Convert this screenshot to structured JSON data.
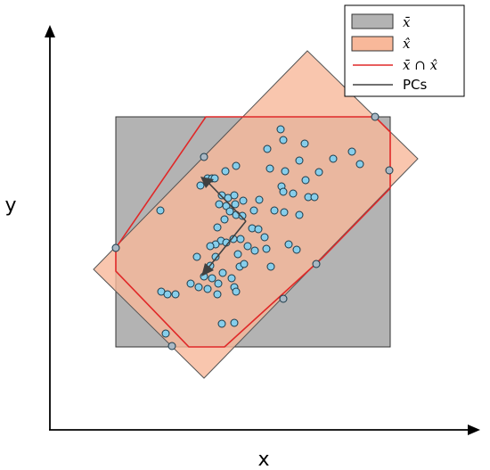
{
  "axes": {
    "x_label": "x",
    "y_label": "y"
  },
  "legend": {
    "items": [
      {
        "key": "gray_box",
        "label": "x̄",
        "color": "#b3b3b3",
        "kind": "patch"
      },
      {
        "key": "orange_box",
        "label": "x̂",
        "color": "#f8c1a6",
        "kind": "patch"
      },
      {
        "key": "intersection",
        "label": "x̄ ∩ x̂",
        "color": "#e03030",
        "kind": "line"
      },
      {
        "key": "pcs",
        "label": "PCs",
        "color": "#404040",
        "kind": "line"
      }
    ]
  },
  "colors": {
    "gray_box": "#b3b3b3",
    "orange_box": "#f8b89a",
    "intersection": "#e02828",
    "point_fill": "#87ceeb",
    "point_edge": "#1a3a4a",
    "pcs": "#404040"
  },
  "chart_data": {
    "type": "scatter",
    "title": "",
    "xlabel": "x",
    "ylabel": "y",
    "points": [
      [
        315,
        145
      ],
      [
        318,
        157
      ],
      [
        300,
        167
      ],
      [
        342,
        161
      ],
      [
        395,
        170
      ],
      [
        404,
        184
      ],
      [
        374,
        178
      ],
      [
        358,
        193
      ],
      [
        265,
        186
      ],
      [
        253,
        192
      ],
      [
        303,
        189
      ],
      [
        320,
        192
      ],
      [
        336,
        180
      ],
      [
        233,
        200
      ],
      [
        238,
        200
      ],
      [
        241,
        200
      ],
      [
        316,
        209
      ],
      [
        318,
        215
      ],
      [
        329,
        217
      ],
      [
        343,
        202
      ],
      [
        346,
        221
      ],
      [
        353,
        221
      ],
      [
        225,
        208
      ],
      [
        249,
        219
      ],
      [
        256,
        222
      ],
      [
        263,
        219
      ],
      [
        273,
        225
      ],
      [
        291,
        224
      ],
      [
        285,
        236
      ],
      [
        308,
        236
      ],
      [
        319,
        238
      ],
      [
        336,
        241
      ],
      [
        246,
        229
      ],
      [
        254,
        231
      ],
      [
        258,
        237
      ],
      [
        265,
        241
      ],
      [
        264,
        229
      ],
      [
        252,
        246
      ],
      [
        272,
        242
      ],
      [
        180,
        236
      ],
      [
        244,
        255
      ],
      [
        283,
        256
      ],
      [
        290,
        257
      ],
      [
        248,
        270
      ],
      [
        254,
        272
      ],
      [
        262,
        268
      ],
      [
        242,
        274
      ],
      [
        278,
        276
      ],
      [
        297,
        266
      ],
      [
        286,
        281
      ],
      [
        267,
        285
      ],
      [
        236,
        276
      ],
      [
        270,
        268
      ],
      [
        324,
        274
      ],
      [
        333,
        280
      ],
      [
        299,
        279
      ],
      [
        242,
        288
      ],
      [
        221,
        288
      ],
      [
        236,
        298
      ],
      [
        269,
        299
      ],
      [
        274,
        296
      ],
      [
        304,
        299
      ],
      [
        250,
        306
      ],
      [
        229,
        310
      ],
      [
        238,
        312
      ],
      [
        260,
        312
      ],
      [
        214,
        318
      ],
      [
        223,
        322
      ],
      [
        233,
        324
      ],
      [
        245,
        318
      ],
      [
        263,
        322
      ],
      [
        181,
        327
      ],
      [
        188,
        330
      ],
      [
        197,
        330
      ],
      [
        244,
        330
      ],
      [
        265,
        327
      ],
      [
        249,
        363
      ],
      [
        263,
        362
      ],
      [
        186,
        374
      ]
    ],
    "boundary_points": [
      [
        421,
        131
      ],
      [
        437,
        191
      ],
      [
        355,
        296
      ],
      [
        318,
        335
      ],
      [
        193,
        388
      ],
      [
        130,
        278
      ],
      [
        229,
        176
      ]
    ]
  }
}
